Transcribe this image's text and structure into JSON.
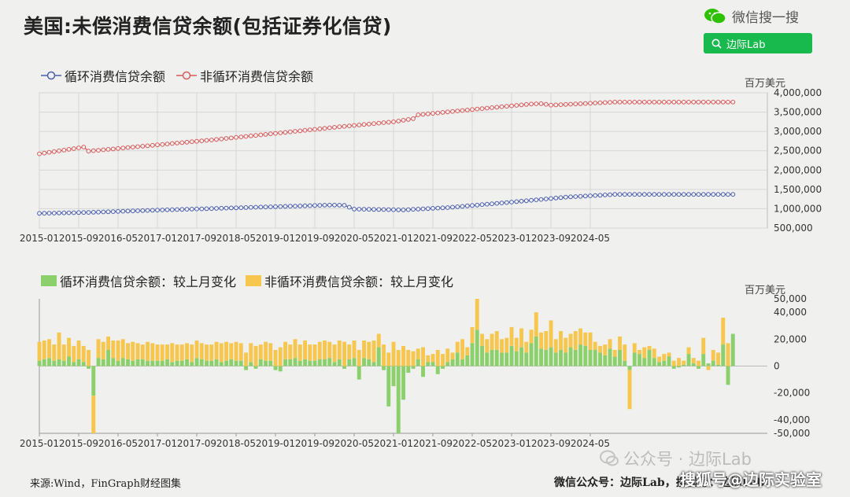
{
  "title": "美国:未偿消费信贷余额(包括证券化信贷)",
  "wechat": {
    "brand_label": "微信搜一搜",
    "search_label": "边际Lab",
    "icon": "wechat-icon"
  },
  "colors": {
    "revolving": "#4b5fb0",
    "nonrevolving": "#d95b5b",
    "rev_change": "#8ccf6d",
    "nonrev_change": "#f6c64e"
  },
  "source": "来源:Wind，FinGraph财经图集",
  "footer": "微信公众号：边际Lab，搜狐号：边际Lab",
  "watermark": {
    "line1": "公众号 · 边际Lab",
    "line2": "搜狐号@边际实验室"
  },
  "chart_data": [
    {
      "type": "line",
      "title": "美国:未偿消费信贷余额(包括证券化信贷)",
      "unit_label": "百万美元",
      "x_start": "2015-01",
      "x_ticks": [
        "2015-01",
        "2015-09",
        "2016-05",
        "2017-01",
        "2017-09",
        "2018-05",
        "2019-01",
        "2019-09",
        "2020-05",
        "2021-01",
        "2021-09",
        "2022-05",
        "2023-01",
        "2023-09",
        "2024-05"
      ],
      "y_axis_position": "right",
      "ylim": [
        500000,
        4000000
      ],
      "y_ticks": [
        "4,000,000",
        "3,500,000",
        "3,000,000",
        "2,500,000",
        "2,000,000",
        "1,500,000",
        "1,000,000",
        "500,000"
      ],
      "y_tick_values": [
        4000000,
        3500000,
        3000000,
        2500000,
        2000000,
        1500000,
        1000000,
        500000
      ],
      "grid": true,
      "legend_position": "top-left",
      "series": [
        {
          "name": "循环消费信贷余额",
          "anchors": [
            [
              "2015-01",
              880000
            ],
            [
              "2015-11",
              905000
            ],
            [
              "2016-12",
              960000
            ],
            [
              "2018-12",
              1050000
            ],
            [
              "2019-12",
              1095000
            ],
            [
              "2020-03",
              1090000
            ],
            [
              "2020-05",
              990000
            ],
            [
              "2021-03",
              970000
            ],
            [
              "2021-12",
              1030000
            ],
            [
              "2022-12",
              1160000
            ],
            [
              "2023-12",
              1300000
            ],
            [
              "2024-10",
              1370000
            ]
          ]
        },
        {
          "name": "非循环消费信贷余额",
          "anchors": [
            [
              "2015-01",
              2420000
            ],
            [
              "2015-10",
              2595000
            ],
            [
              "2015-11",
              2490000
            ],
            [
              "2017-12",
              2780000
            ],
            [
              "2020-02",
              3120000
            ],
            [
              "2021-01",
              3250000
            ],
            [
              "2021-05",
              3330000
            ],
            [
              "2021-06",
              3430000
            ],
            [
              "2022-06",
              3580000
            ],
            [
              "2023-05",
              3710000
            ],
            [
              "2023-07",
              3720000
            ],
            [
              "2023-09",
              3680000
            ],
            [
              "2024-10",
              3760000
            ]
          ]
        }
      ]
    },
    {
      "type": "bar",
      "stacked": true,
      "unit_label": "百万美元",
      "x_start": "2015-01",
      "x_ticks": [
        "2015-01",
        "2015-09",
        "2016-05",
        "2017-01",
        "2017-09",
        "2018-05",
        "2019-01",
        "2019-09",
        "2020-05",
        "2021-01",
        "2021-09",
        "2022-05",
        "2023-01",
        "2023-09",
        "2024-05"
      ],
      "y_axis_position": "right",
      "ylim": [
        -50000,
        50000
      ],
      "y_ticks": [
        "50,000",
        "40,000",
        "20,000",
        "0",
        "-20,000",
        "-40,000",
        "-50,000"
      ],
      "y_tick_values": [
        50000,
        40000,
        20000,
        0,
        -20000,
        -40000,
        -50000
      ],
      "legend_position": "top-left",
      "series": [
        {
          "name": "循环消费信贷余额：较上月变化",
          "values": [
            4000,
            5000,
            6000,
            4000,
            5000,
            4000,
            7000,
            3000,
            5000,
            3000,
            -2000,
            -22000,
            6000,
            5000,
            12000,
            6000,
            4000,
            6000,
            5000,
            4000,
            5000,
            5000,
            4000,
            4000,
            4000,
            4000,
            5000,
            3000,
            4000,
            4000,
            5000,
            3000,
            6000,
            5000,
            4000,
            4000,
            5000,
            3000,
            4000,
            5000,
            4000,
            4000,
            -3000,
            3000,
            -2000,
            5000,
            4000,
            4000,
            -3000,
            -4000,
            5000,
            5000,
            6000,
            4000,
            5000,
            4000,
            4000,
            5000,
            5000,
            6000,
            3000,
            5000,
            -2000,
            5000,
            6000,
            -10000,
            6000,
            5000,
            3000,
            14000,
            -3000,
            -30000,
            -15000,
            -50000,
            -25000,
            -5000,
            -2000,
            5000,
            -8000,
            3000,
            3000,
            -6000,
            -2000,
            3000,
            5000,
            10000,
            5000,
            8000,
            17000,
            27000,
            15000,
            10000,
            12000,
            12000,
            10000,
            10000,
            15000,
            11000,
            14000,
            10000,
            17000,
            22000,
            13000,
            12000,
            14000,
            10000,
            12000,
            10000,
            14000,
            12000,
            16000,
            15000,
            12000,
            12000,
            10000,
            8000,
            13000,
            7000,
            12000,
            4000,
            -3000,
            10000,
            9000,
            6000,
            12000,
            6000,
            3000,
            4000,
            7000,
            -2000,
            -1000,
            1000,
            9000,
            2000,
            -2000,
            9000,
            2000,
            4000,
            1000,
            16000,
            -14000,
            24000,
            22000
          ]
        },
        {
          "name": "非循环消费信贷余额：较上月变化",
          "values": [
            14000,
            14000,
            14000,
            12000,
            20000,
            12000,
            14000,
            12000,
            14000,
            12000,
            12000,
            -28000,
            14000,
            13000,
            10000,
            13000,
            15000,
            14000,
            12000,
            14000,
            12000,
            11000,
            14000,
            13000,
            12000,
            12000,
            11000,
            14000,
            12000,
            12000,
            12000,
            13000,
            13000,
            12000,
            12000,
            12000,
            13000,
            14000,
            14000,
            12000,
            14000,
            13000,
            10000,
            14000,
            15000,
            11000,
            14000,
            13000,
            12000,
            14000,
            13000,
            11000,
            14000,
            12000,
            14000,
            12000,
            12000,
            13000,
            14000,
            12000,
            13000,
            14000,
            18000,
            11000,
            13000,
            12000,
            13000,
            13000,
            16000,
            10000,
            16000,
            10000,
            18000,
            12000,
            15000,
            12000,
            11000,
            8000,
            14000,
            5000,
            6000,
            12000,
            9000,
            10000,
            5000,
            8000,
            15000,
            6000,
            12000,
            23000,
            9000,
            10000,
            12000,
            14000,
            10000,
            11000,
            14000,
            10000,
            14000,
            8000,
            10000,
            18000,
            12000,
            14000,
            20000,
            10000,
            14000,
            11000,
            10000,
            14000,
            12000,
            10000,
            13000,
            6000,
            5000,
            8000,
            7000,
            5000,
            10000,
            12000,
            -29000,
            7000,
            3000,
            8000,
            3000,
            7000,
            4000,
            5000,
            3000,
            4000,
            6000,
            3000,
            5000,
            4000,
            4000,
            12000,
            -3000,
            8000,
            9000,
            20000,
            17000
          ]
        }
      ]
    }
  ]
}
